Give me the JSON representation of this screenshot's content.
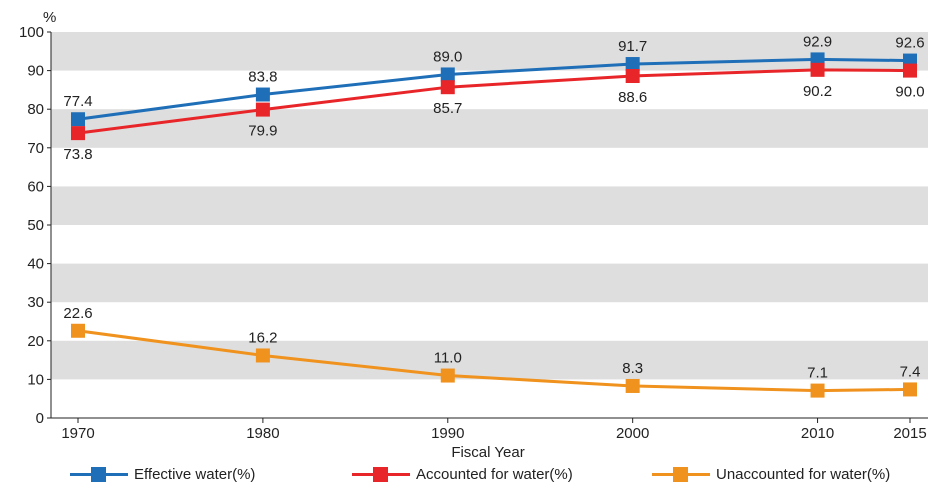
{
  "chart_data": {
    "type": "line",
    "y_unit_label": "%",
    "xlabel": "Fiscal Year",
    "categories": [
      "1970",
      "1980",
      "1990",
      "2000",
      "2010",
      "2015"
    ],
    "x": [
      1970,
      1980,
      1990,
      2000,
      2010,
      2015
    ],
    "ylim": [
      0,
      100
    ],
    "y_ticks": [
      "0",
      "10",
      "20",
      "30",
      "40",
      "50",
      "60",
      "70",
      "80",
      "90",
      "100"
    ],
    "banded_background": true,
    "series": [
      {
        "name": "Effective water(%)",
        "color": "#1f6fb8",
        "values": [
          77.4,
          83.8,
          89.0,
          91.7,
          92.9,
          92.6
        ],
        "labels": [
          "77.4",
          "83.8",
          "89.0",
          "91.7",
          "92.9",
          "92.6"
        ],
        "label_side": "above"
      },
      {
        "name": "Accounted for water(%)",
        "color": "#e8262a",
        "values": [
          73.8,
          79.9,
          85.7,
          88.6,
          90.2,
          90.0
        ],
        "labels": [
          "73.8",
          "79.9",
          "85.7",
          "88.6",
          "90.2",
          "90.0"
        ],
        "label_side": "below"
      },
      {
        "name": "Unaccounted for water(%)",
        "color": "#f0921e",
        "values": [
          22.6,
          16.2,
          11.0,
          8.3,
          7.1,
          7.4
        ],
        "labels": [
          "22.6",
          "16.2",
          "11.0",
          "8.3",
          "7.1",
          "7.4"
        ],
        "label_side": "above"
      }
    ],
    "legend_position": "bottom"
  }
}
